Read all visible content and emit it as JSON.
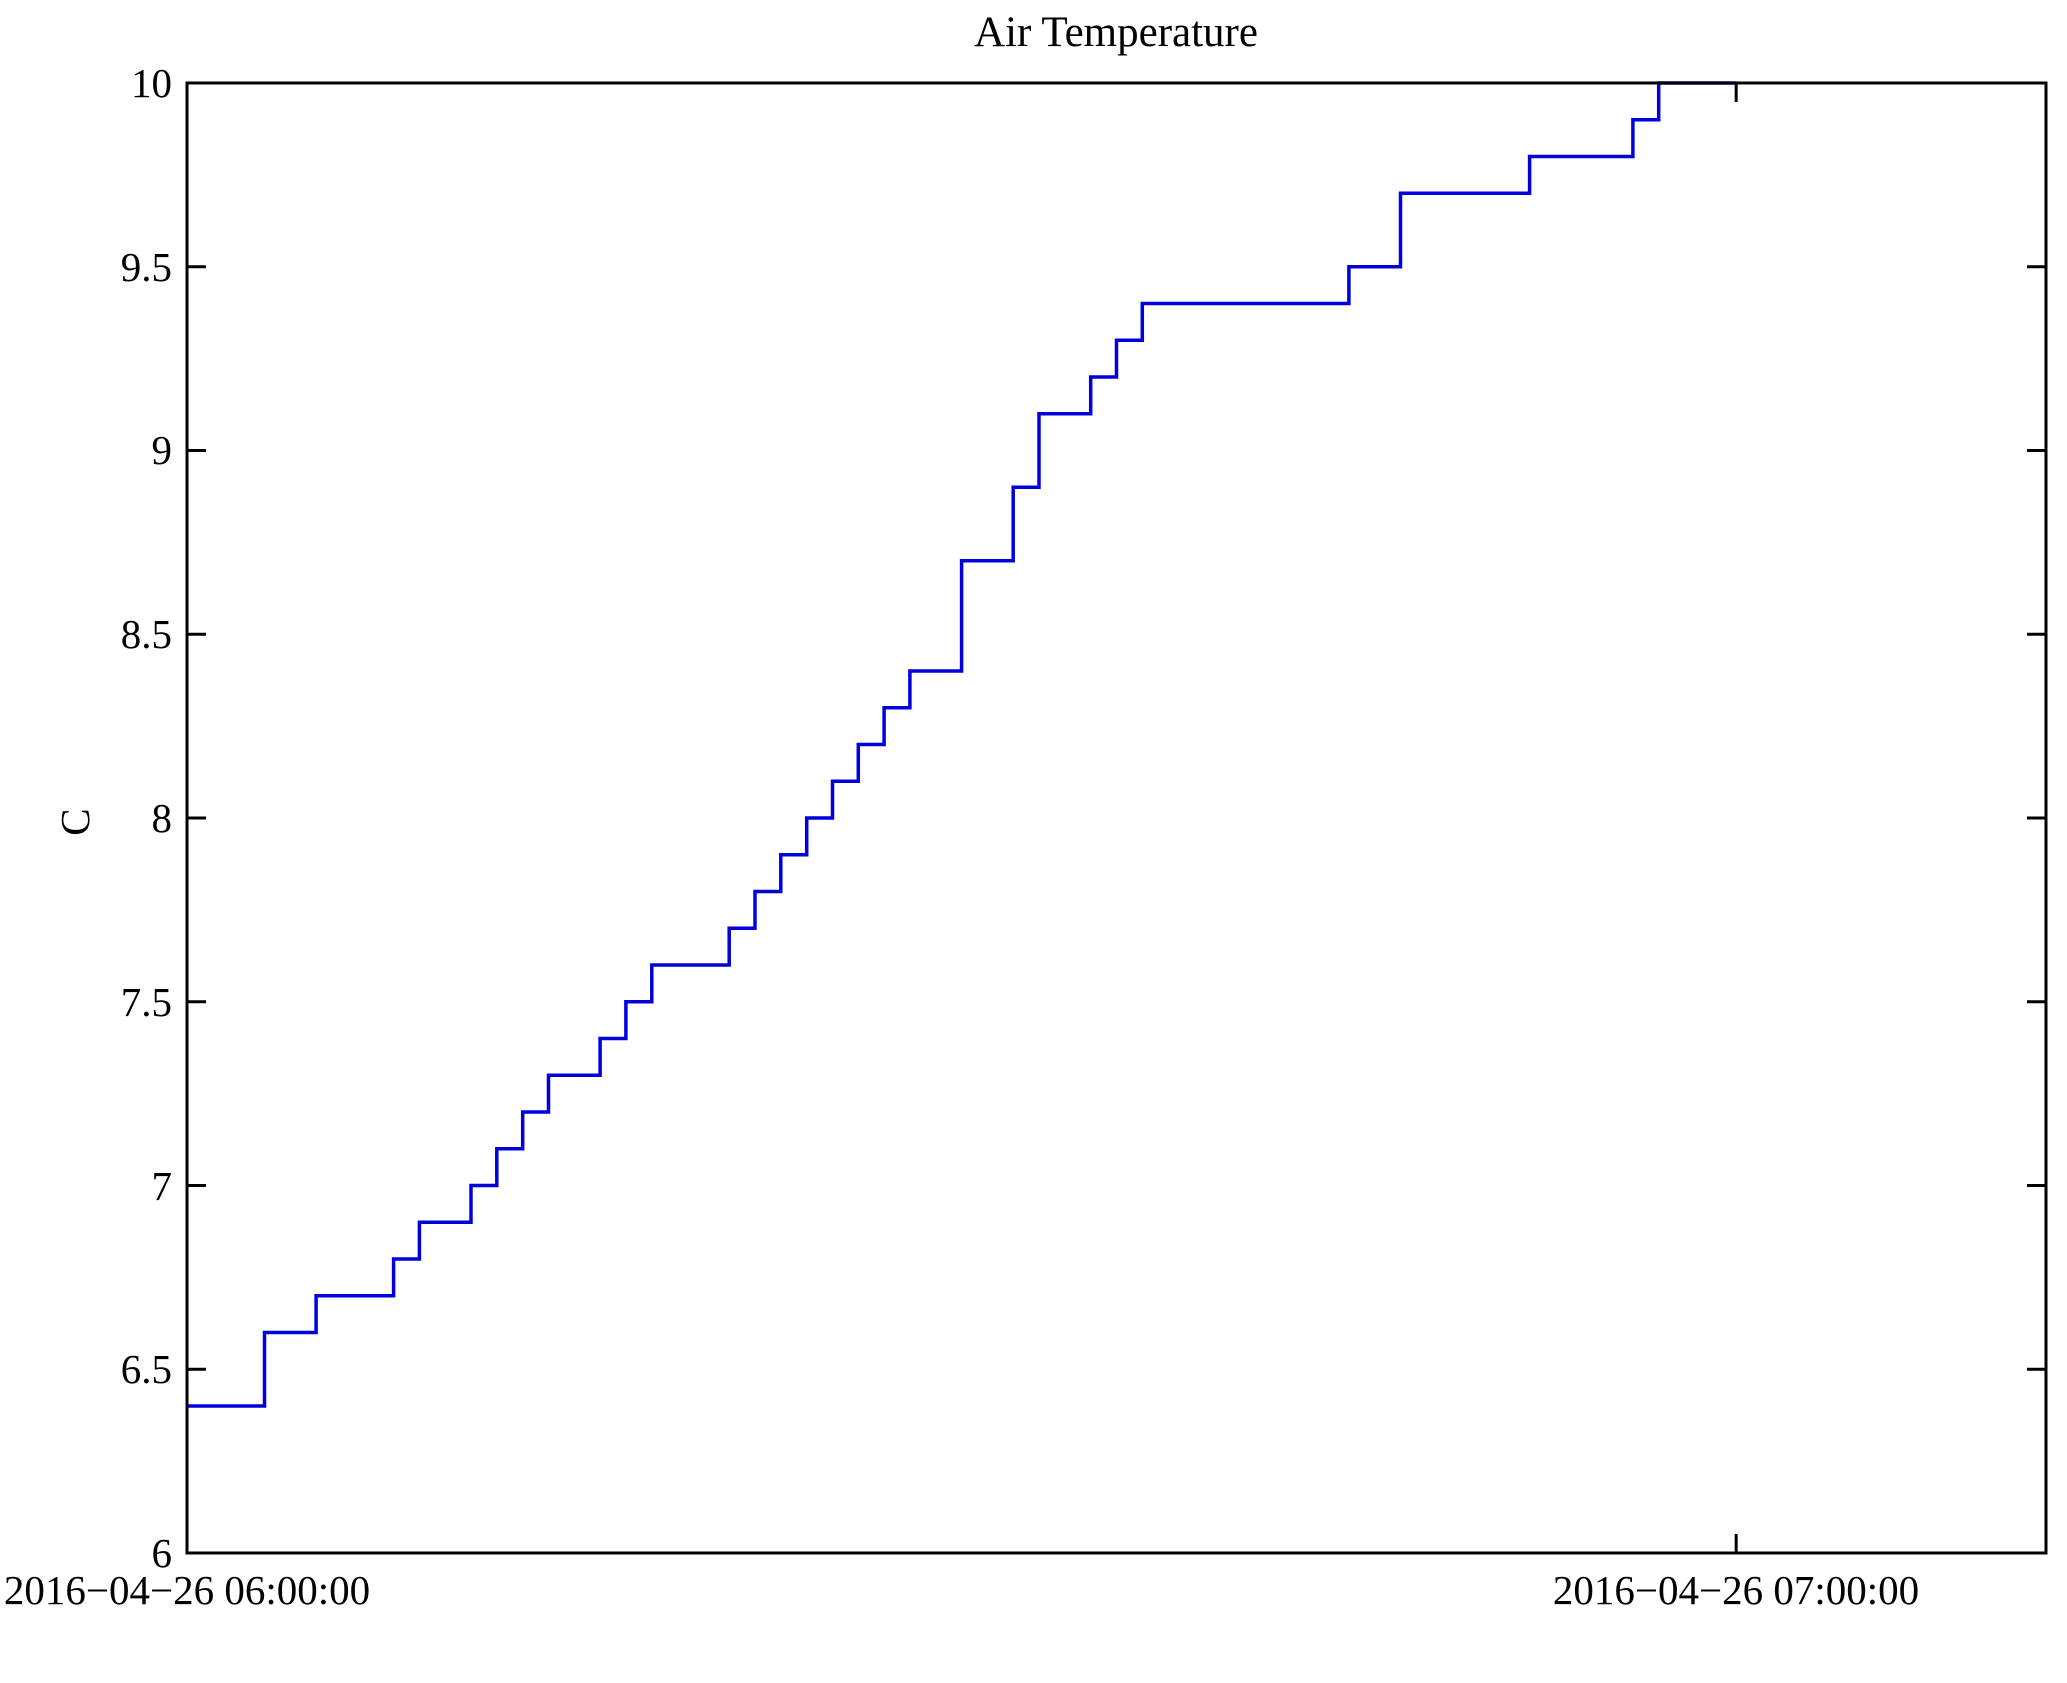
{
  "figure": {
    "background_color": "#ffffff",
    "axes_color": "#000000"
  },
  "chart_data": {
    "type": "line",
    "line_style": "step-post",
    "title": "Air Temperature",
    "xlabel": "",
    "ylabel": "C",
    "line_color": "#0000dd",
    "grid": false,
    "box": true,
    "ylim": [
      6,
      10
    ],
    "yticks": [
      6,
      6.5,
      7,
      7.5,
      8,
      8.5,
      9,
      9.5,
      10
    ],
    "ytick_labels": [
      "6",
      "6.5",
      "7",
      "7.5",
      "8",
      "8.5",
      "9",
      "9.5",
      "10"
    ],
    "xtick_labels": [
      "2016−04−26 06:00:00",
      "2016−04−26 07:00:00"
    ],
    "xtick_positions_minutes": [
      0,
      60
    ],
    "x_axis_span_minutes": [
      0,
      72
    ],
    "series": [
      {
        "name": "Air Temperature",
        "unit": "C",
        "start": "2016-04-26 06:00:00",
        "end": "2016-04-26 07:00:00",
        "sample_interval_minutes": 1,
        "values_c": [
          6.4,
          6.4,
          6.4,
          6.6,
          6.6,
          6.7,
          6.7,
          6.7,
          6.8,
          6.9,
          6.9,
          7.0,
          7.1,
          7.2,
          7.3,
          7.3,
          7.4,
          7.5,
          7.6,
          7.6,
          7.6,
          7.7,
          7.8,
          7.9,
          8.0,
          8.1,
          8.2,
          8.3,
          8.4,
          8.4,
          8.7,
          8.7,
          8.9,
          9.1,
          9.1,
          9.2,
          9.3,
          9.4,
          9.4,
          9.4,
          9.4,
          9.4,
          9.4,
          9.4,
          9.4,
          9.5,
          9.5,
          9.7,
          9.7,
          9.7,
          9.7,
          9.7,
          9.8,
          9.8,
          9.8,
          9.8,
          9.9,
          10.0,
          10.0,
          10.0,
          10.0
        ]
      }
    ]
  }
}
